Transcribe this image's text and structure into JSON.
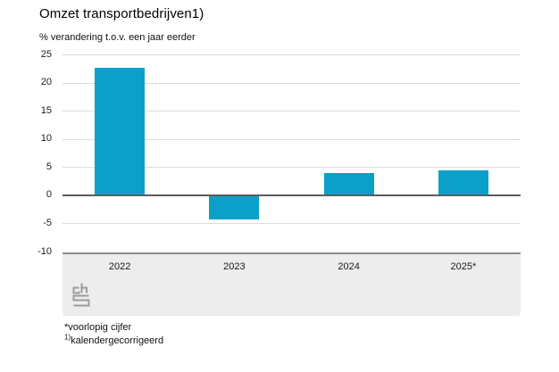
{
  "chart_data": {
    "type": "bar",
    "title": "Omzet transportbedrijven1)",
    "subtitle": "% verandering t.o.v. een jaar eerder",
    "categories": [
      "2022",
      "2023",
      "2024",
      "2025*"
    ],
    "values": [
      22.7,
      -4.3,
      4.0,
      4.4
    ],
    "ylim": [
      -10,
      25
    ],
    "yticks": [
      25,
      20,
      15,
      10,
      5,
      0,
      -5,
      -10
    ],
    "grid": true,
    "legend_position": "none",
    "bar_color": "#0aa0c8",
    "xlabel": "",
    "ylabel": "% verandering t.o.v. een jaar eerder"
  },
  "footnotes": [
    {
      "prefix": "*",
      "text": "voorlopig cijfer"
    },
    {
      "prefix": "1)",
      "text": "kalendergecorrigeerd"
    }
  ],
  "logo": {
    "name": "cbs-logo",
    "color": "#9c9c9c"
  }
}
